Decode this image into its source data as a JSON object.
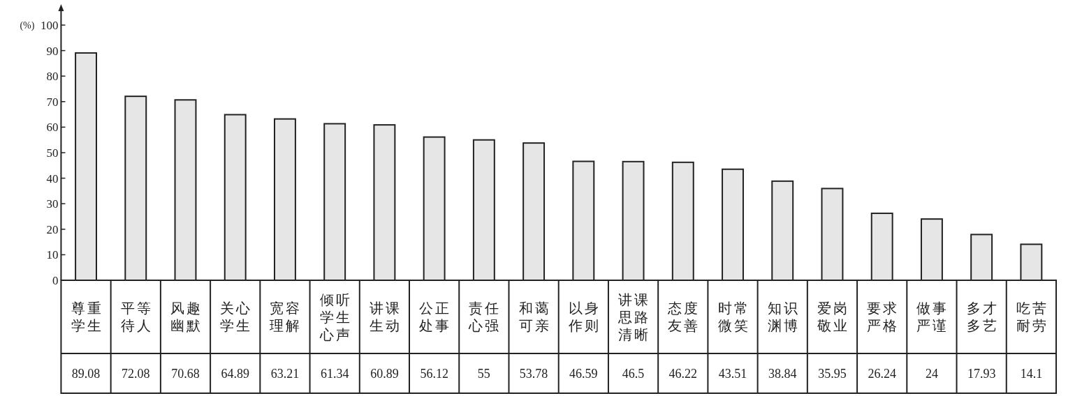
{
  "chart_data": {
    "type": "bar",
    "ylabel": "(%)",
    "categories": [
      "尊重学生",
      "平等待人",
      "风趣幽默",
      "关心学生",
      "宽容理解",
      "倾听学生心声",
      "讲课生动",
      "公正处事",
      "责任心强",
      "和蔼可亲",
      "以身作则",
      "讲课思路清晰",
      "态度友善",
      "时常微笑",
      "知识渊博",
      "爱岗敬业",
      "要求严格",
      "做事严谨",
      "多才多艺",
      "吃苦耐劳"
    ],
    "values": [
      89.08,
      72.08,
      70.68,
      64.89,
      63.21,
      61.34,
      60.89,
      56.12,
      55,
      53.78,
      46.59,
      46.5,
      46.22,
      43.51,
      38.84,
      35.95,
      26.24,
      24,
      17.93,
      14.1
    ],
    "color": "#e6e6e6",
    "ylim": [
      0,
      106
    ],
    "yticks": [
      0,
      10,
      20,
      30,
      40,
      50,
      60,
      70,
      80,
      90,
      100
    ],
    "data_labels": true
  }
}
